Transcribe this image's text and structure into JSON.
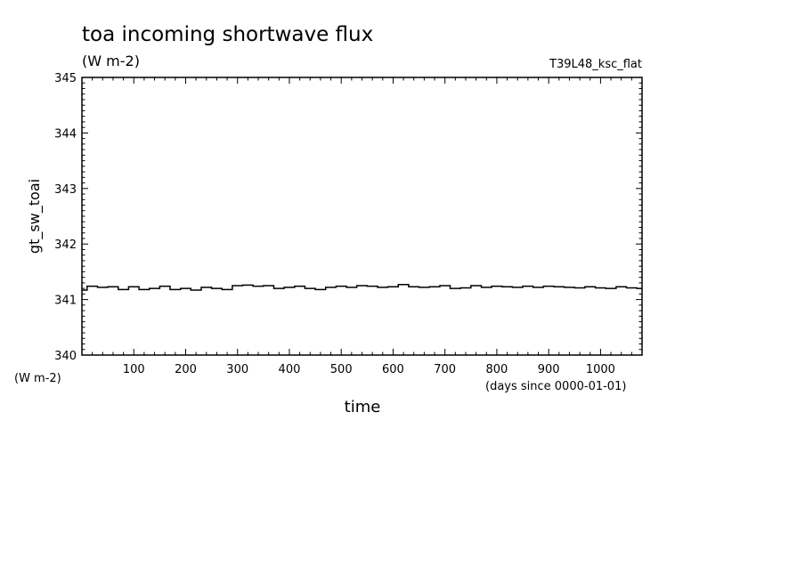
{
  "chart_data": {
    "type": "line",
    "title": "toa incoming shortwave flux",
    "units": "(W m-2)",
    "run_label": "T39L48_ksc_flat",
    "ylabel": "gt_sw_toai",
    "y_units_label": "(W m-2)",
    "xlabel": "time",
    "x_units_label": "(days since 0000-01-01)",
    "xlim": [
      0,
      1080
    ],
    "ylim": [
      340,
      345
    ],
    "x_ticks": [
      100,
      200,
      300,
      400,
      500,
      600,
      700,
      800,
      900,
      1000
    ],
    "x_tick_labels": [
      "100",
      "200",
      "300",
      "400",
      "500",
      "600",
      "700",
      "800",
      "900",
      "1000"
    ],
    "y_ticks": [
      340,
      341,
      342,
      343,
      344,
      345
    ],
    "y_tick_labels": [
      "340",
      "341",
      "342",
      "343",
      "344",
      "345"
    ],
    "grid": false,
    "series": [
      {
        "x": [
          0,
          20,
          40,
          60,
          80,
          100,
          120,
          140,
          160,
          180,
          200,
          220,
          240,
          260,
          280,
          300,
          320,
          340,
          360,
          380,
          400,
          420,
          440,
          460,
          480,
          500,
          520,
          540,
          560,
          580,
          600,
          620,
          640,
          660,
          680,
          700,
          720,
          740,
          760,
          780,
          800,
          820,
          840,
          860,
          880,
          900,
          920,
          940,
          960,
          980,
          1000,
          1020,
          1040,
          1060,
          1080
        ],
        "values": [
          341.17,
          341.24,
          341.22,
          341.23,
          341.18,
          341.23,
          341.18,
          341.2,
          341.24,
          341.18,
          341.2,
          341.17,
          341.22,
          341.2,
          341.18,
          341.25,
          341.26,
          341.24,
          341.25,
          341.2,
          341.22,
          341.24,
          341.2,
          341.18,
          341.22,
          341.24,
          341.22,
          341.25,
          341.24,
          341.22,
          341.23,
          341.27,
          341.23,
          341.22,
          341.23,
          341.25,
          341.2,
          341.21,
          341.25,
          341.22,
          341.24,
          341.23,
          341.22,
          341.24,
          341.22,
          341.24,
          341.23,
          341.22,
          341.21,
          341.23,
          341.21,
          341.2,
          341.23,
          341.21,
          341.2
        ]
      }
    ]
  }
}
